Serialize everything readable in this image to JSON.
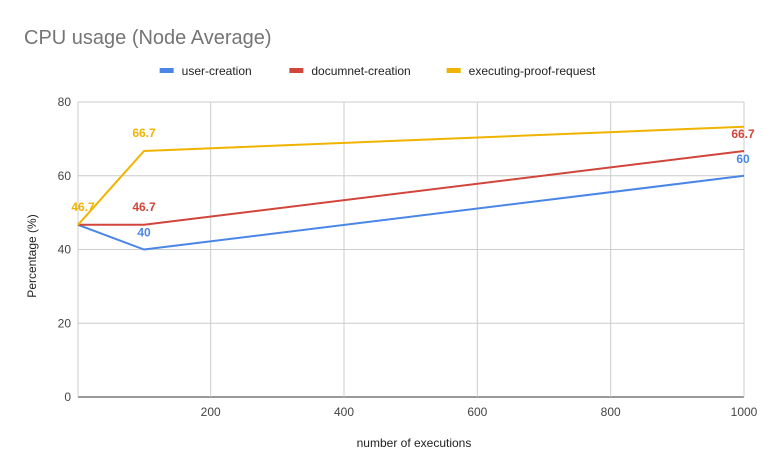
{
  "chart_data": {
    "type": "line",
    "title": "CPU usage (Node Average)",
    "xlabel": "number of executions",
    "ylabel": "Percentage (%)",
    "xlim": [
      1,
      1000
    ],
    "ylim": [
      0,
      80
    ],
    "x_ticks": [
      200,
      400,
      600,
      800,
      1000
    ],
    "y_ticks": [
      0,
      20,
      40,
      60,
      80
    ],
    "grid": true,
    "legend_position": "top",
    "series": [
      {
        "name": "user-creation",
        "color": "#4a86e8",
        "points": [
          [
            1,
            46.7
          ],
          [
            100,
            40
          ],
          [
            1000,
            60
          ]
        ],
        "labels": [
          [
            100,
            40,
            "40"
          ],
          [
            1000,
            60,
            "60"
          ]
        ]
      },
      {
        "name": "documnet-creation",
        "color": "#d1453b",
        "points": [
          [
            1,
            46.7
          ],
          [
            100,
            46.7
          ],
          [
            1000,
            66.7
          ]
        ],
        "labels": [
          [
            100,
            46.7,
            "46.7"
          ],
          [
            1000,
            66.7,
            "66.7"
          ]
        ]
      },
      {
        "name": "executing-proof-request",
        "color": "#f0b400",
        "points": [
          [
            1,
            46.7
          ],
          [
            100,
            66.7
          ],
          [
            1000,
            73.3
          ]
        ],
        "labels": [
          [
            1,
            46.7,
            "46.7"
          ],
          [
            100,
            66.7,
            "66.7"
          ]
        ]
      }
    ]
  }
}
